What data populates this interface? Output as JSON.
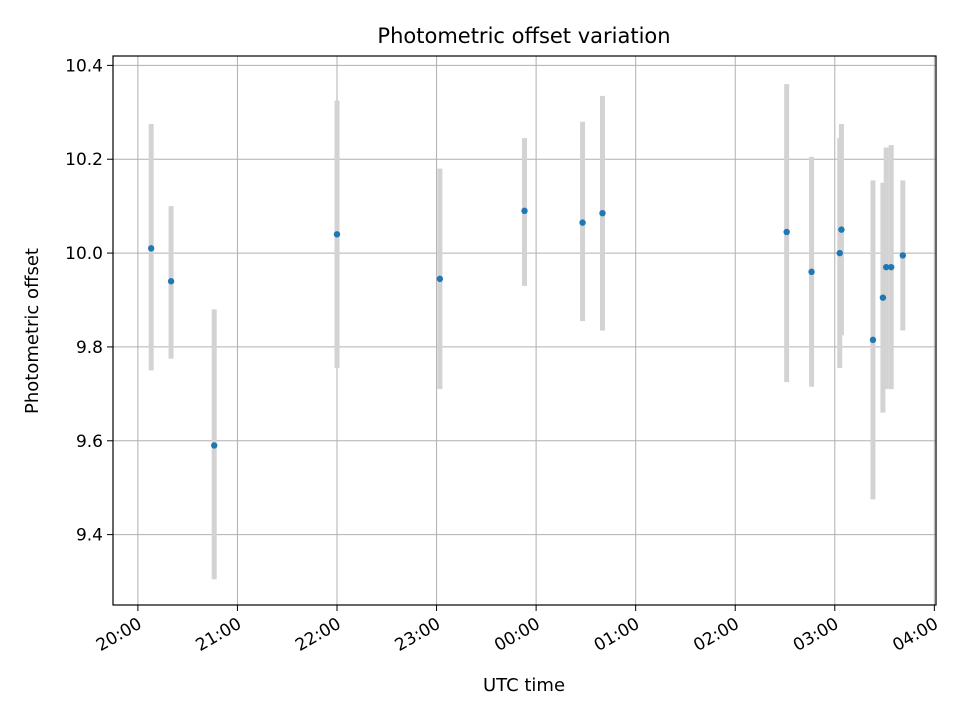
{
  "chart_data": {
    "type": "scatter",
    "title": "Photometric offset variation",
    "xlabel": "UTC time",
    "ylabel": "Photometric offset",
    "grid": true,
    "x_axis": {
      "kind": "time",
      "range": [
        "19:45",
        "24:00+04:01"
      ],
      "ticks": [
        {
          "label": "20:00",
          "value": 0
        },
        {
          "label": "21:00",
          "value": 60
        },
        {
          "label": "22:00",
          "value": 120
        },
        {
          "label": "23:00",
          "value": 180
        },
        {
          "label": "00:00",
          "value": 240
        },
        {
          "label": "01:00",
          "value": 300
        },
        {
          "label": "02:00",
          "value": 360
        },
        {
          "label": "03:00",
          "value": 420
        },
        {
          "label": "04:00",
          "value": 480
        }
      ]
    },
    "ylim": [
      9.25,
      10.42
    ],
    "y_ticks": [
      "9.4",
      "9.6",
      "9.8",
      "10.0",
      "10.2",
      "10.4"
    ],
    "marker_color": "#1f77b4",
    "errorbar_color": "#d3d3d3",
    "points": [
      {
        "time": "20:08",
        "y": 10.01,
        "err_low": 9.75,
        "err_high": 10.275
      },
      {
        "time": "20:20",
        "y": 9.94,
        "err_low": 9.775,
        "err_high": 10.1
      },
      {
        "time": "20:46",
        "y": 9.59,
        "err_low": 9.305,
        "err_high": 9.88
      },
      {
        "time": "22:00",
        "y": 10.04,
        "err_low": 9.755,
        "err_high": 10.325
      },
      {
        "time": "23:02",
        "y": 9.945,
        "err_low": 9.71,
        "err_high": 10.18
      },
      {
        "time": "23:53",
        "y": 10.09,
        "err_low": 9.93,
        "err_high": 10.245
      },
      {
        "time": "00:28",
        "y": 10.065,
        "err_low": 9.855,
        "err_high": 10.28
      },
      {
        "time": "00:40",
        "y": 10.085,
        "err_low": 9.835,
        "err_high": 10.335
      },
      {
        "time": "02:31",
        "y": 10.045,
        "err_low": 9.725,
        "err_high": 10.36
      },
      {
        "time": "02:46",
        "y": 9.96,
        "err_low": 9.715,
        "err_high": 10.205
      },
      {
        "time": "03:03",
        "y": 10.0,
        "err_low": 9.755,
        "err_high": 10.245
      },
      {
        "time": "03:04",
        "y": 10.05,
        "err_low": 9.825,
        "err_high": 10.275
      },
      {
        "time": "03:23",
        "y": 9.815,
        "err_low": 9.475,
        "err_high": 10.155
      },
      {
        "time": "03:29",
        "y": 9.905,
        "err_low": 9.66,
        "err_high": 10.15
      },
      {
        "time": "03:31",
        "y": 9.97,
        "err_low": 9.71,
        "err_high": 10.225
      },
      {
        "time": "03:34",
        "y": 9.97,
        "err_low": 9.71,
        "err_high": 10.23
      },
      {
        "time": "03:41",
        "y": 9.995,
        "err_low": 9.835,
        "err_high": 10.155
      }
    ]
  }
}
